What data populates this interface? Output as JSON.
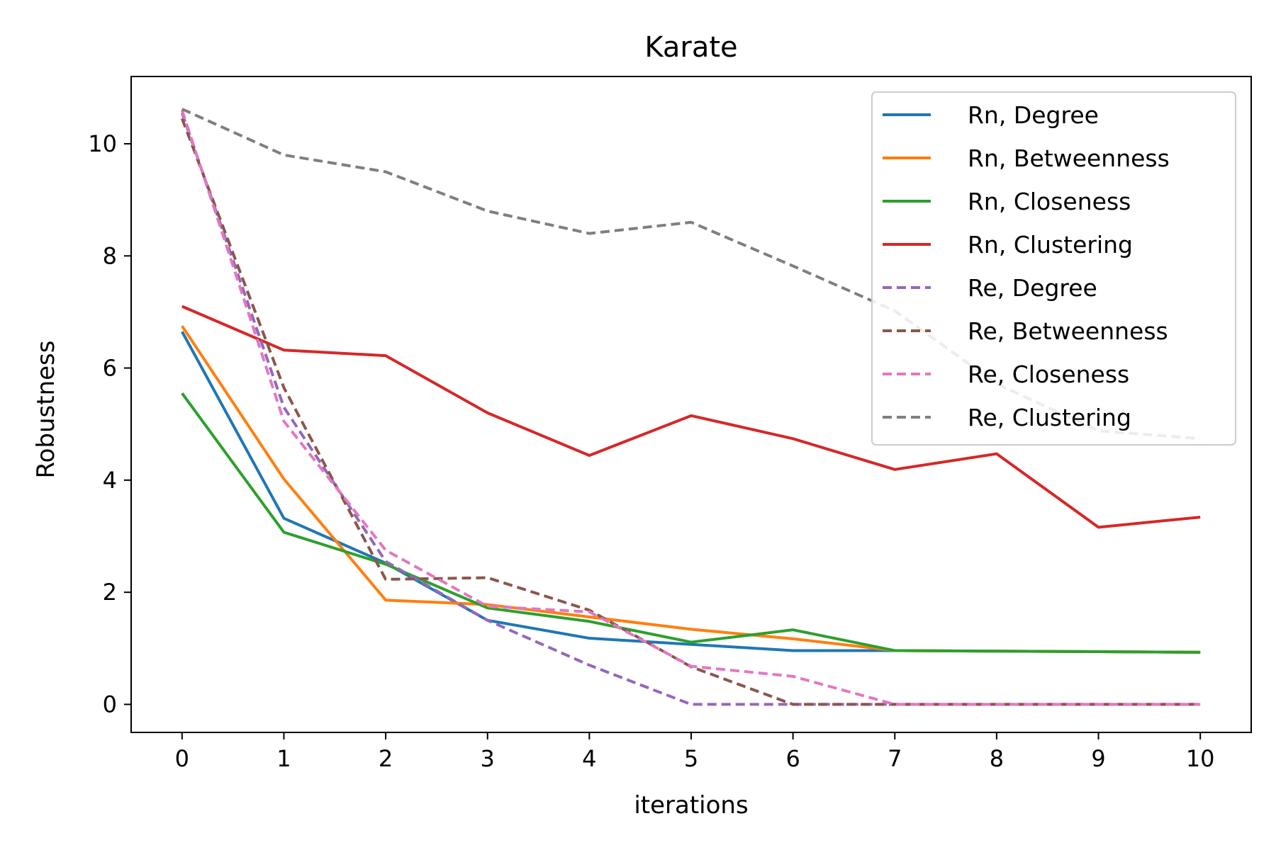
{
  "chart_data": {
    "type": "line",
    "title": "Karate",
    "xlabel": "iterations",
    "ylabel": "Robustness",
    "xlim": [
      -0.5,
      10.5
    ],
    "ylim": [
      -0.5,
      11.2
    ],
    "xticks": [
      0,
      1,
      2,
      3,
      4,
      5,
      6,
      7,
      8,
      9,
      10
    ],
    "yticks": [
      0,
      2,
      4,
      6,
      8,
      10
    ],
    "grid": false,
    "legend_position": "top-right",
    "x": [
      0,
      1,
      2,
      3,
      4,
      5,
      6,
      7,
      8,
      9,
      10
    ],
    "series": [
      {
        "name": "Rn, Degree",
        "color": "#1f77b4",
        "style": "solid",
        "values": [
          6.65,
          3.32,
          2.52,
          1.5,
          1.18,
          1.07,
          0.96,
          0.96,
          0.95,
          0.94,
          0.93
        ]
      },
      {
        "name": "Rn, Betweenness",
        "color": "#ff7f0e",
        "style": "solid",
        "values": [
          6.75,
          4.02,
          1.86,
          1.78,
          1.56,
          1.34,
          1.17,
          0.96,
          0.95,
          0.94,
          0.93
        ]
      },
      {
        "name": "Rn, Closeness",
        "color": "#2ca02c",
        "style": "solid",
        "values": [
          5.55,
          3.07,
          2.5,
          1.72,
          1.48,
          1.11,
          1.33,
          0.96,
          0.95,
          0.94,
          0.93
        ]
      },
      {
        "name": "Rn, Clustering",
        "color": "#d62728",
        "style": "solid",
        "values": [
          7.1,
          6.32,
          6.22,
          5.2,
          4.44,
          5.15,
          4.74,
          4.19,
          4.47,
          3.16,
          3.34
        ]
      },
      {
        "name": "Re, Degree",
        "color": "#9467bd",
        "style": "dashed",
        "values": [
          10.55,
          5.3,
          2.55,
          1.5,
          0.7,
          0.0,
          0.0,
          0.0,
          0.0,
          0.0,
          0.0
        ]
      },
      {
        "name": "Re, Betweenness",
        "color": "#8c564b",
        "style": "dashed",
        "values": [
          10.45,
          5.65,
          2.23,
          2.26,
          1.68,
          0.67,
          0.0,
          0.0,
          0.0,
          0.0,
          0.0
        ]
      },
      {
        "name": "Re, Closeness",
        "color": "#e377c2",
        "style": "dashed",
        "values": [
          10.6,
          5.05,
          2.75,
          1.75,
          1.65,
          0.68,
          0.5,
          0.0,
          0.0,
          0.0,
          0.0
        ]
      },
      {
        "name": "Re, Clustering",
        "color": "#7f7f7f",
        "style": "dashed",
        "values": [
          10.62,
          9.8,
          9.5,
          8.8,
          8.4,
          8.6,
          7.82,
          7.02,
          5.72,
          4.88,
          4.74
        ]
      }
    ]
  }
}
